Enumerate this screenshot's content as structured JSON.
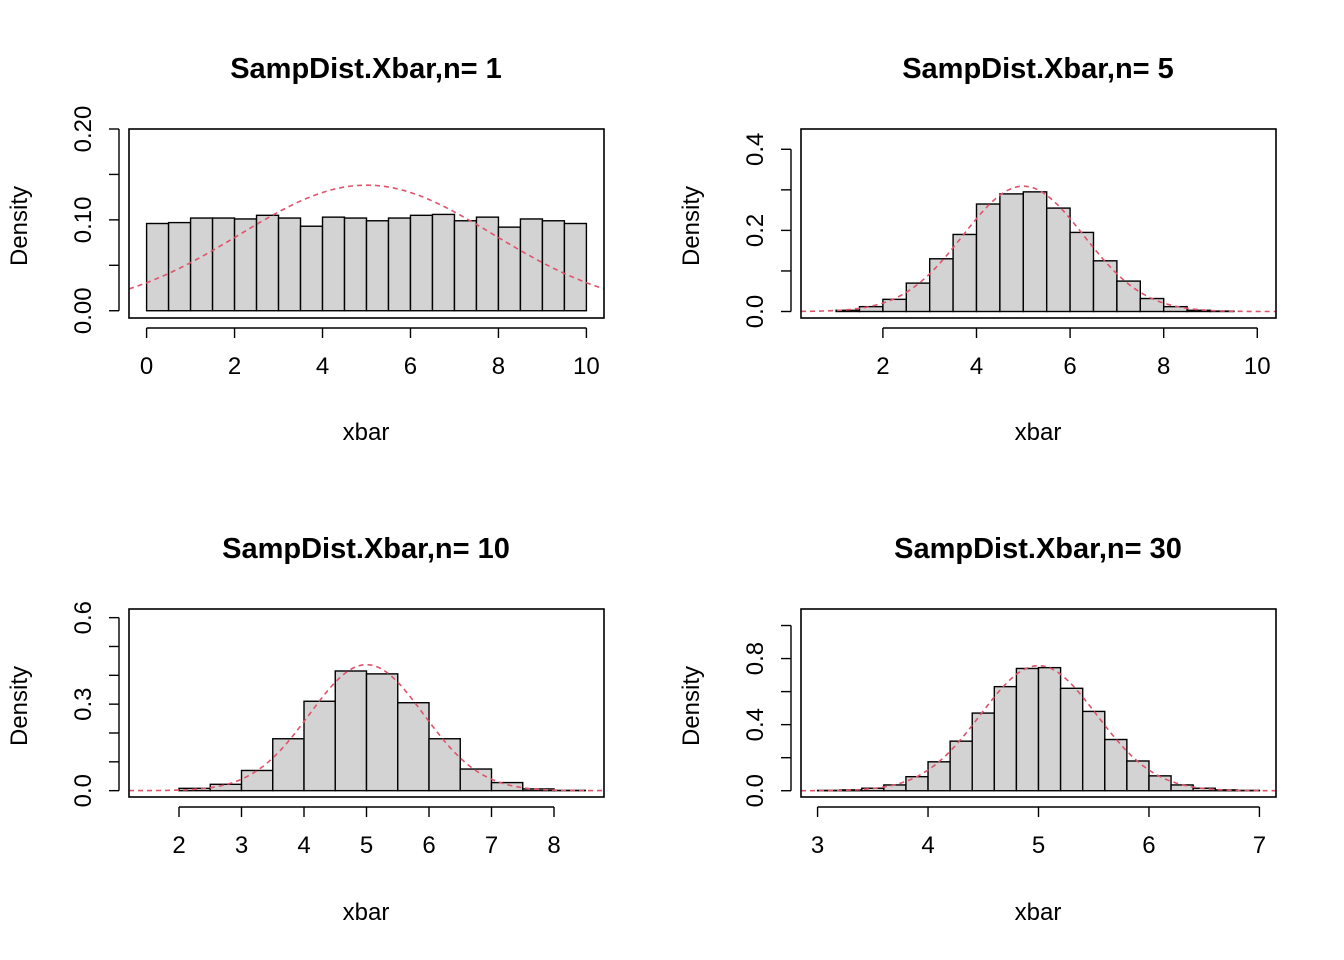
{
  "colors": {
    "bar_fill": "#d3d3d3",
    "curve": "#df536b",
    "axis": "#000000"
  },
  "chart_data": [
    {
      "type": "bar",
      "title": "SampDist.Xbar,n= 1",
      "xlabel": "xbar",
      "ylabel": "Density",
      "xlim": [
        -0.4,
        10.4
      ],
      "ylim": [
        -0.008,
        0.2
      ],
      "xticks": [
        0,
        2,
        4,
        6,
        8,
        10
      ],
      "yticks": [
        0,
        0.05,
        0.1,
        0.15,
        0.2
      ],
      "ytick_labels": [
        "0.00",
        "",
        "0.10",
        "",
        "0.20"
      ],
      "bin_start": 0,
      "bin_width": 0.5,
      "values": [
        0.096,
        0.097,
        0.102,
        0.102,
        0.101,
        0.105,
        0.102,
        0.093,
        0.103,
        0.102,
        0.099,
        0.102,
        0.105,
        0.106,
        0.099,
        0.103,
        0.092,
        0.101,
        0.099,
        0.096
      ],
      "curve": {
        "mean": 5,
        "sd": 2.887
      }
    },
    {
      "type": "bar",
      "title": "SampDist.Xbar,n= 5",
      "xlabel": "xbar",
      "ylabel": "Density",
      "xlim": [
        0.25,
        10.4
      ],
      "ylim": [
        -0.016,
        0.45
      ],
      "xticks": [
        2,
        4,
        6,
        8,
        10
      ],
      "yticks": [
        0,
        0.1,
        0.2,
        0.3,
        0.4
      ],
      "ytick_labels": [
        "0.0",
        "",
        "0.2",
        "",
        "0.4"
      ],
      "bin_start": 0.5,
      "bin_width": 0.5,
      "values": [
        0.0,
        0.003,
        0.012,
        0.03,
        0.07,
        0.13,
        0.19,
        0.265,
        0.29,
        0.295,
        0.255,
        0.195,
        0.125,
        0.075,
        0.032,
        0.012,
        0.003,
        0.001,
        0.0
      ],
      "curve": {
        "mean": 5,
        "sd": 1.291
      }
    },
    {
      "type": "bar",
      "title": "SampDist.Xbar,n= 10",
      "xlabel": "xbar",
      "ylabel": "Density",
      "xlim": [
        1.2,
        8.8
      ],
      "ylim": [
        -0.022,
        0.63
      ],
      "xticks": [
        2,
        3,
        4,
        5,
        6,
        7,
        8
      ],
      "yticks": [
        0,
        0.1,
        0.2,
        0.3,
        0.4,
        0.5,
        0.6
      ],
      "ytick_labels": [
        "0.0",
        "",
        "",
        "0.3",
        "",
        "",
        "0.6"
      ],
      "bin_start": 1.5,
      "bin_width": 0.5,
      "values": [
        0.0,
        0.008,
        0.022,
        0.07,
        0.18,
        0.31,
        0.415,
        0.405,
        0.305,
        0.18,
        0.075,
        0.028,
        0.006,
        0.001
      ],
      "curve": {
        "mean": 5,
        "sd": 0.913
      }
    },
    {
      "type": "bar",
      "title": "SampDist.Xbar,n= 30",
      "xlabel": "xbar",
      "ylabel": "Density",
      "xlim": [
        2.85,
        7.15
      ],
      "ylim": [
        -0.038,
        1.1
      ],
      "xticks": [
        3,
        4,
        5,
        6,
        7
      ],
      "yticks": [
        0,
        0.2,
        0.4,
        0.6,
        0.8,
        1.0
      ],
      "ytick_labels": [
        "0.0",
        "",
        "0.4",
        "",
        "0.8",
        ""
      ],
      "bin_start": 3,
      "bin_width": 0.2,
      "values": [
        0.002,
        0.005,
        0.015,
        0.035,
        0.085,
        0.175,
        0.3,
        0.47,
        0.63,
        0.74,
        0.745,
        0.62,
        0.48,
        0.31,
        0.18,
        0.09,
        0.035,
        0.015,
        0.005,
        0.002
      ],
      "curve": {
        "mean": 5,
        "sd": 0.527
      }
    }
  ]
}
